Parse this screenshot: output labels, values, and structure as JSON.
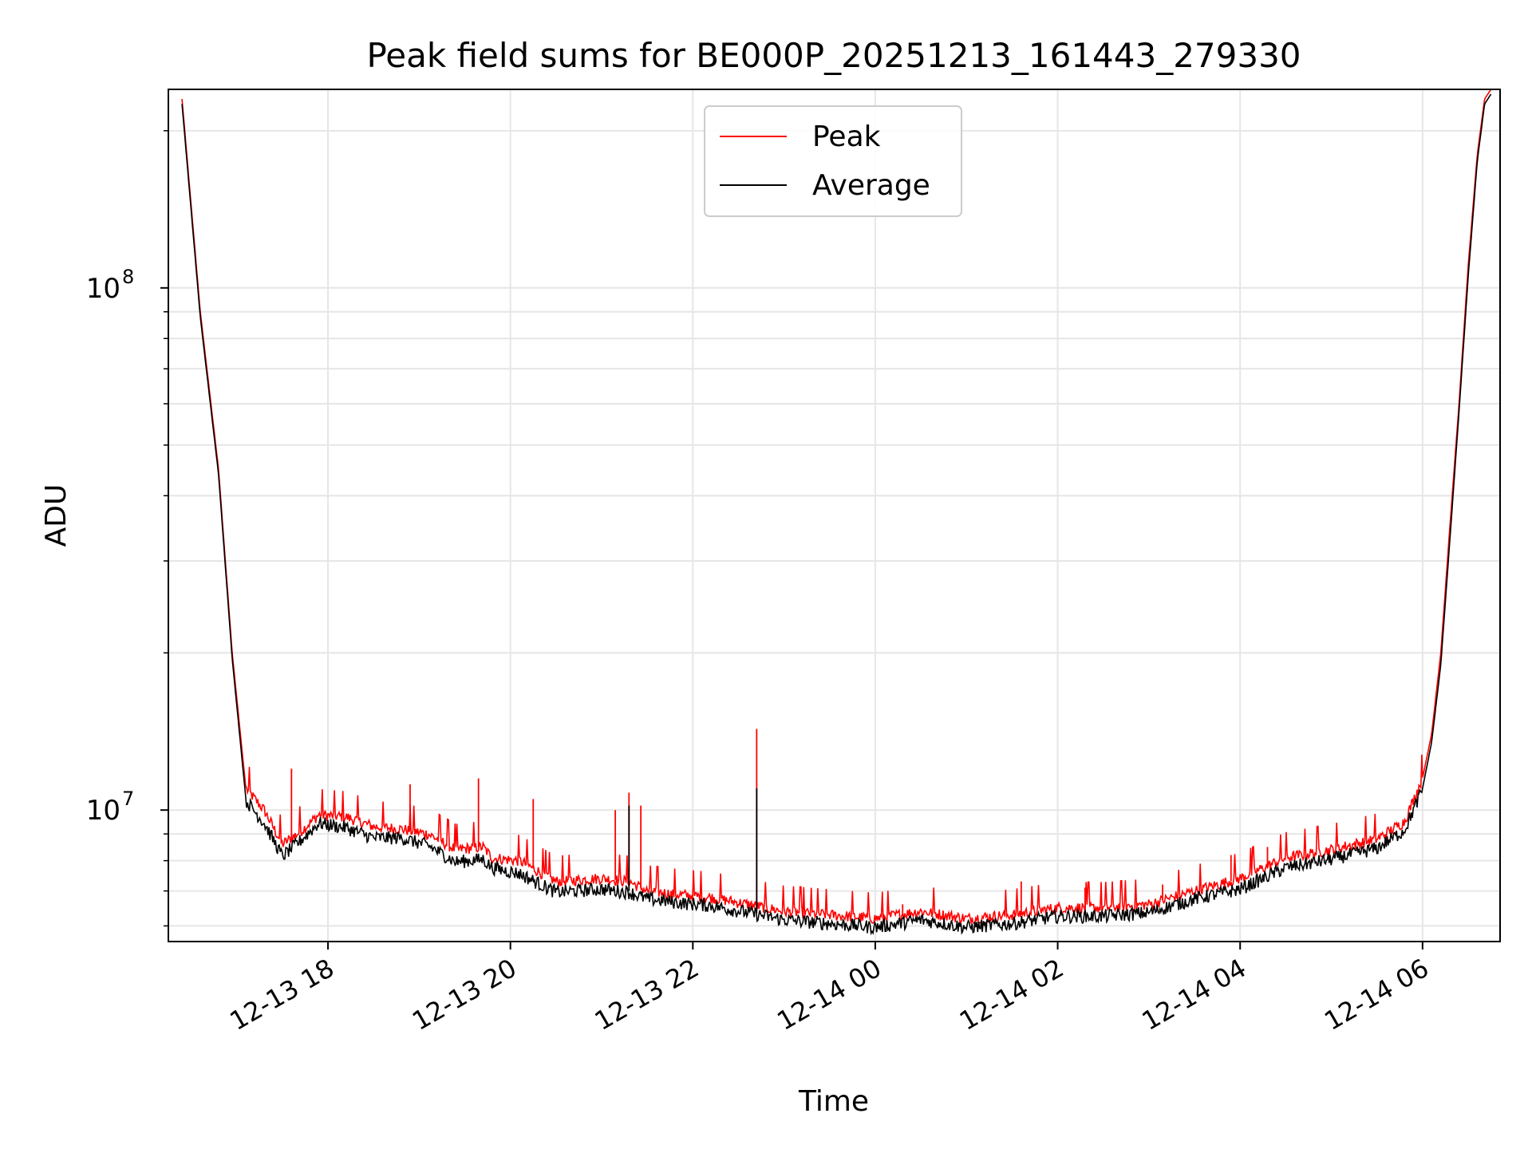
{
  "chart_data": {
    "type": "line",
    "title": "Peak field sums for BE000P_20251213_161443_279330",
    "xlabel": "Time",
    "ylabel": "ADU",
    "yscale": "log",
    "ylim": [
      5600000,
      240000000
    ],
    "xlim_hours": [
      16.25,
      6.85
    ],
    "x_ticks": [
      {
        "hour": 18,
        "label": "12-13 18"
      },
      {
        "hour": 20,
        "label": "12-13 20"
      },
      {
        "hour": 22,
        "label": "12-13 22"
      },
      {
        "hour": 24,
        "label": "12-14 00"
      },
      {
        "hour": 26,
        "label": "12-14 02"
      },
      {
        "hour": 28,
        "label": "12-14 04"
      },
      {
        "hour": 30,
        "label": "12-14 06"
      }
    ],
    "y_ticks": [
      {
        "exp": 7,
        "base": "10",
        "sup": "7"
      },
      {
        "exp": 8,
        "base": "10",
        "sup": "8"
      }
    ],
    "grid": true,
    "legend_position": "top-center",
    "colors": {
      "peak": "#ff0000",
      "average": "#000000",
      "grid": "#e6e6e6"
    },
    "series": [
      {
        "name": "Peak",
        "color": "#ff0000",
        "t_hours": [
          16.4,
          16.6,
          16.8,
          16.95,
          17.1,
          17.3,
          17.5,
          17.7,
          17.9,
          18.2,
          18.5,
          18.8,
          19.1,
          19.4,
          19.7,
          19.8,
          20.1,
          20.5,
          21.0,
          21.3,
          21.5,
          21.8,
          22.2,
          22.6,
          23.0,
          23.5,
          24.0,
          24.5,
          25.0,
          25.5,
          26.0,
          26.5,
          27.0,
          27.5,
          28.0,
          28.5,
          29.0,
          29.5,
          29.8,
          30.0,
          30.1,
          30.2,
          30.3,
          30.4,
          30.5,
          30.6,
          30.68,
          30.75
        ],
        "values": [
          230000000,
          90000000,
          45000000,
          20000000,
          11000000,
          10000000,
          8600000,
          9100000,
          9800000,
          9700000,
          9300000,
          9200000,
          9000000,
          8400000,
          8500000,
          8100000,
          8000000,
          7300000,
          7400000,
          7300000,
          7000000,
          6900000,
          6800000,
          6600000,
          6400000,
          6300000,
          6200000,
          6400000,
          6200000,
          6300000,
          6500000,
          6500000,
          6600000,
          7000000,
          7400000,
          8100000,
          8400000,
          8800000,
          9500000,
          11500000,
          14000000,
          20000000,
          35000000,
          60000000,
          110000000,
          180000000,
          230000000,
          240000000
        ],
        "spikes": [
          {
            "hour": 17.6,
            "value": 12000000
          },
          {
            "hour": 18.9,
            "value": 11200000
          },
          {
            "hour": 19.65,
            "value": 11500000
          },
          {
            "hour": 20.25,
            "value": 10500000
          },
          {
            "hour": 21.15,
            "value": 10000000
          },
          {
            "hour": 21.3,
            "value": 10800000
          },
          {
            "hour": 21.43,
            "value": 10200000
          },
          {
            "hour": 22.7,
            "value": 14300000
          },
          {
            "hour": 24.3,
            "value": 6600000
          },
          {
            "hour": 25.6,
            "value": 7300000
          },
          {
            "hour": 26.3,
            "value": 7100000
          },
          {
            "hour": 27.15,
            "value": 7200000
          },
          {
            "hour": 27.9,
            "value": 8200000
          },
          {
            "hour": 28.3,
            "value": 8500000
          }
        ]
      },
      {
        "name": "Average",
        "color": "#000000",
        "t_hours": [
          16.4,
          16.6,
          16.8,
          16.95,
          17.1,
          17.3,
          17.5,
          17.7,
          17.9,
          18.2,
          18.5,
          18.8,
          19.1,
          19.4,
          19.7,
          19.8,
          20.1,
          20.5,
          21.0,
          21.3,
          21.5,
          21.8,
          22.2,
          22.6,
          23.0,
          23.5,
          24.0,
          24.5,
          25.0,
          25.5,
          26.0,
          26.5,
          27.0,
          27.5,
          28.0,
          28.5,
          29.0,
          29.5,
          29.8,
          30.0,
          30.1,
          30.2,
          30.3,
          30.4,
          30.5,
          30.6,
          30.68,
          30.75
        ],
        "values": [
          225000000,
          88000000,
          44000000,
          19500000,
          10500000,
          9500000,
          8200000,
          8800000,
          9500000,
          9300000,
          8900000,
          8900000,
          8600000,
          8000000,
          8100000,
          7800000,
          7600000,
          7000000,
          7100000,
          7000000,
          6800000,
          6700000,
          6600000,
          6400000,
          6200000,
          6100000,
          6000000,
          6200000,
          6000000,
          6100000,
          6300000,
          6300000,
          6400000,
          6800000,
          7100000,
          7800000,
          8100000,
          8500000,
          9200000,
          11000000,
          13500000,
          19000000,
          33000000,
          58000000,
          105000000,
          175000000,
          225000000,
          235000000
        ],
        "spikes": [
          {
            "hour": 21.3,
            "value": 10200000
          },
          {
            "hour": 22.7,
            "value": 11000000
          }
        ]
      }
    ]
  }
}
